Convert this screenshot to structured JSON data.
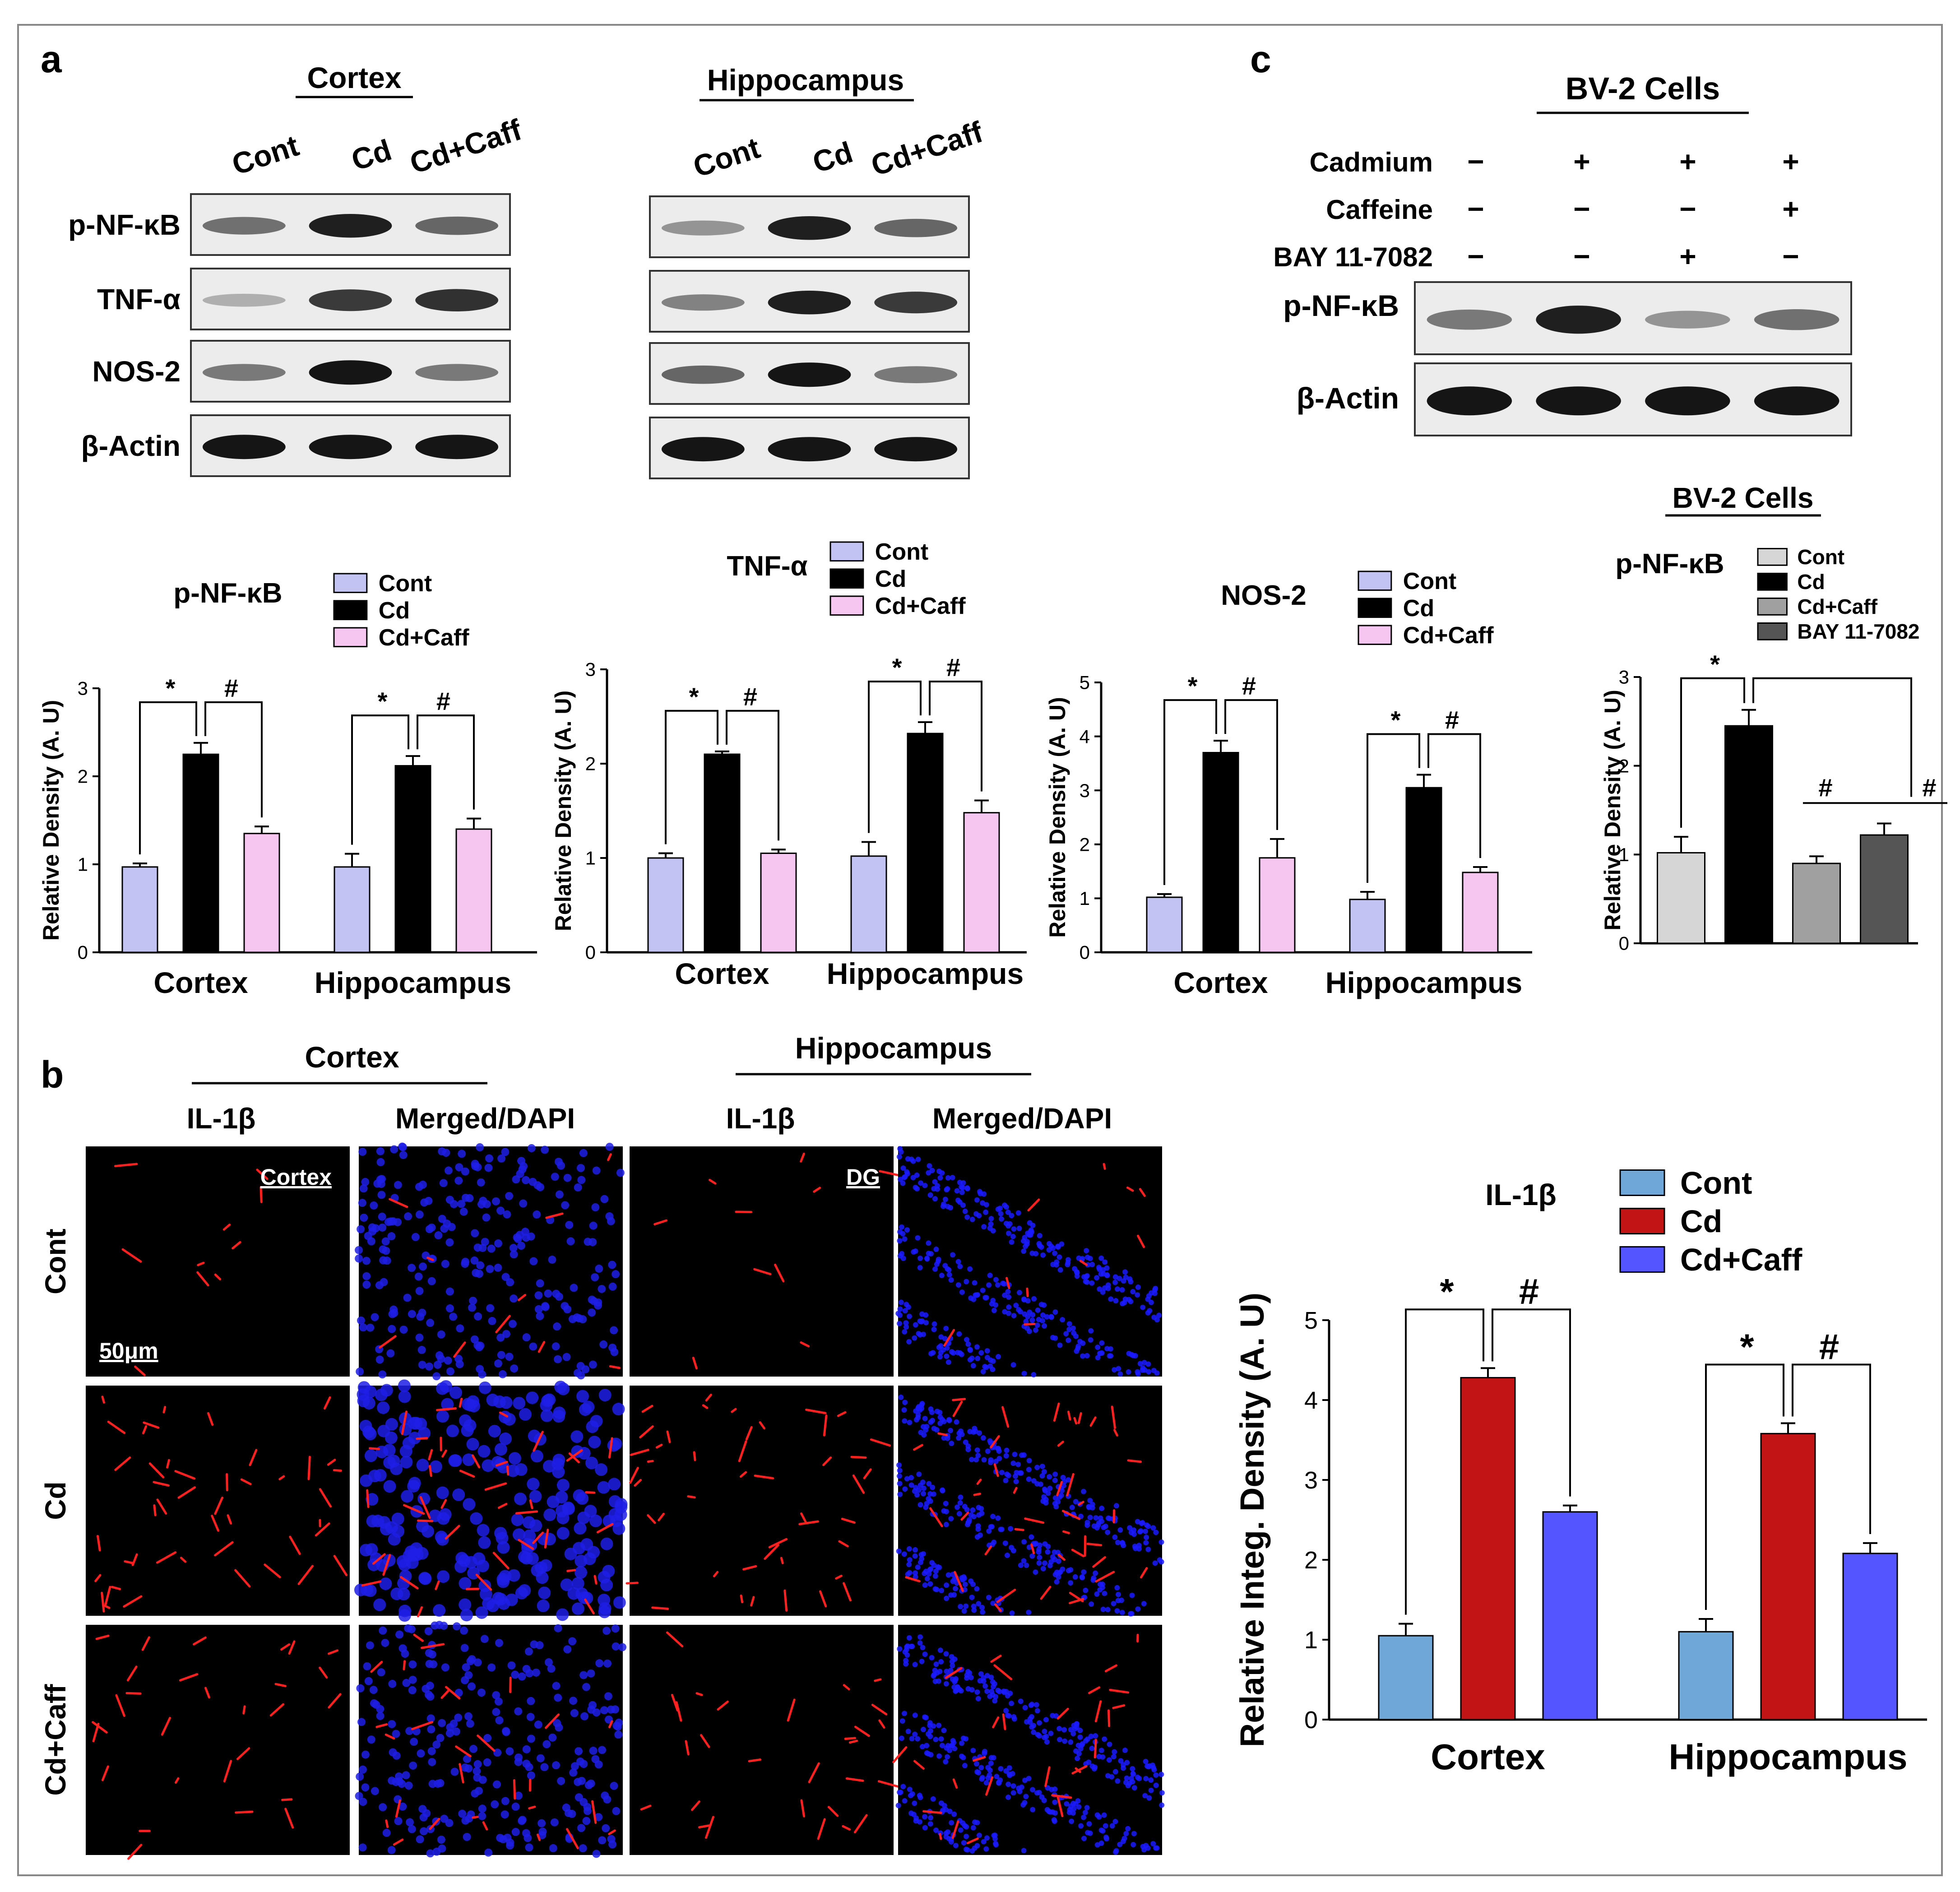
{
  "panels": {
    "a": "a",
    "b": "b",
    "c": "c"
  },
  "blots": {
    "cortex_title": "Cortex",
    "hippo_title": "Hippocampus",
    "lanes": [
      "Cont",
      "Cd",
      "Cd+Caff"
    ],
    "proteins": [
      "p-NF-κB",
      "TNF-α",
      "NOS-2",
      "β-Actin"
    ],
    "cortex_bands": [
      [
        0.5,
        0.95,
        0.55
      ],
      [
        0.15,
        0.8,
        0.85
      ],
      [
        0.45,
        1.0,
        0.45
      ],
      [
        1.0,
        1.0,
        1.0
      ]
    ],
    "hippo_bands": [
      [
        0.3,
        0.95,
        0.55
      ],
      [
        0.4,
        0.95,
        0.8
      ],
      [
        0.55,
        1.0,
        0.45
      ],
      [
        1.0,
        1.0,
        1.0
      ]
    ],
    "bv2_title": "BV-2 Cells",
    "treatments": [
      {
        "name": "Cadmium",
        "signs": [
          "−",
          "+",
          "+",
          "+"
        ]
      },
      {
        "name": "Caffeine",
        "signs": [
          "−",
          "−",
          "−",
          "+"
        ]
      },
      {
        "name": "BAY 11-7082",
        "signs": [
          "−",
          "−",
          "+",
          "−"
        ]
      }
    ],
    "bv2_proteins": [
      "p-NF-κB",
      "β-Actin"
    ],
    "bv2_bands": [
      [
        0.45,
        0.95,
        0.3,
        0.5
      ],
      [
        1.0,
        1.0,
        1.0,
        1.0
      ]
    ]
  },
  "if_panel": {
    "region_cortex": "Cortex",
    "region_hippo": "Hippocampus",
    "col_labels": [
      "IL-1β",
      "Merged/DAPI",
      "IL-1β",
      "Merged/DAPI"
    ],
    "row_labels": [
      "Cont",
      "Cd",
      "Cd+Caff"
    ],
    "overlay_cortex": "Cortex",
    "overlay_dg": "DG",
    "scale_bar": "50μm"
  },
  "chart_data": [
    {
      "type": "bar",
      "title": "p-NF-κB",
      "ylabel": "Relative Density (A. U)",
      "ylim": [
        0,
        3
      ],
      "yticks": [
        "0",
        "1",
        "2",
        "3"
      ],
      "categories": [
        "Cortex",
        "Hippocampus"
      ],
      "series": [
        {
          "name": "Cont",
          "values": [
            0.97,
            0.97
          ],
          "errors": [
            0.04,
            0.15
          ],
          "color": "#c3c3f3"
        },
        {
          "name": "Cd",
          "values": [
            2.25,
            2.12
          ],
          "errors": [
            0.13,
            0.11
          ],
          "color": "#000000"
        },
        {
          "name": "Cd+Caff",
          "values": [
            1.35,
            1.4
          ],
          "errors": [
            0.08,
            0.12
          ],
          "color": "#f6c6f0"
        }
      ],
      "annotations": [
        "*",
        "#",
        "*",
        "#"
      ]
    },
    {
      "type": "bar",
      "title": "TNF-α",
      "ylabel": "Relative Density (A. U)",
      "ylim": [
        0,
        3
      ],
      "yticks": [
        "0",
        "1",
        "2",
        "3"
      ],
      "categories": [
        "Cortex",
        "Hippocampus"
      ],
      "series": [
        {
          "name": "Cont",
          "values": [
            1.0,
            1.02
          ],
          "errors": [
            0.05,
            0.15
          ],
          "color": "#c3c3f3"
        },
        {
          "name": "Cd",
          "values": [
            2.1,
            2.32
          ],
          "errors": [
            0.03,
            0.12
          ],
          "color": "#000000"
        },
        {
          "name": "Cd+Caff",
          "values": [
            1.05,
            1.48
          ],
          "errors": [
            0.04,
            0.13
          ],
          "color": "#f6c6f0"
        }
      ],
      "annotations": [
        "*",
        "#",
        "*",
        "#"
      ]
    },
    {
      "type": "bar",
      "title": "NOS-2",
      "ylabel": "Relative Density (A. U)",
      "ylim": [
        0,
        5
      ],
      "yticks": [
        "0",
        "1",
        "2",
        "3",
        "4",
        "5"
      ],
      "categories": [
        "Cortex",
        "Hippocampus"
      ],
      "series": [
        {
          "name": "Cont",
          "values": [
            1.02,
            0.98
          ],
          "errors": [
            0.06,
            0.14
          ],
          "color": "#c3c3f3"
        },
        {
          "name": "Cd",
          "values": [
            3.7,
            3.05
          ],
          "errors": [
            0.22,
            0.24
          ],
          "color": "#000000"
        },
        {
          "name": "Cd+Caff",
          "values": [
            1.75,
            1.48
          ],
          "errors": [
            0.35,
            0.1
          ],
          "color": "#f6c6f0"
        }
      ],
      "annotations": [
        "*",
        "#",
        "*",
        "#"
      ]
    },
    {
      "type": "bar",
      "title": "p-NF-κB",
      "ylabel": "Relative Density (A. U)",
      "ylim": [
        0,
        3
      ],
      "yticks": [
        "0",
        "1",
        "2",
        "3"
      ],
      "categories": [
        "Cont",
        "Cd",
        "Cd+Caff",
        "BAY 11-7082"
      ],
      "values": [
        1.02,
        2.45,
        0.9,
        1.22
      ],
      "errors": [
        0.18,
        0.18,
        0.08,
        0.13
      ],
      "colors": [
        "#d6d6d6",
        "#000000",
        "#a0a0a0",
        "#555555"
      ],
      "annotations": [
        "*",
        "#",
        "#"
      ]
    },
    {
      "type": "bar",
      "title": "IL-1β",
      "ylabel": "Relative Integ. Density (A. U)",
      "ylim": [
        0,
        5
      ],
      "yticks": [
        "0",
        "1",
        "2",
        "3",
        "4",
        "5"
      ],
      "categories": [
        "Cortex",
        "Hippocampus"
      ],
      "series": [
        {
          "name": "Cont",
          "values": [
            1.05,
            1.1
          ],
          "errors": [
            0.15,
            0.16
          ],
          "color": "#6fa8d8"
        },
        {
          "name": "Cd",
          "values": [
            4.28,
            3.58
          ],
          "errors": [
            0.12,
            0.13
          ],
          "color": "#c21414"
        },
        {
          "name": "Cd+Caff",
          "values": [
            2.6,
            2.08
          ],
          "errors": [
            0.08,
            0.13
          ],
          "color": "#5555ff"
        }
      ],
      "annotations": [
        "*",
        "#",
        "*",
        "#"
      ]
    }
  ],
  "bv2_chart_title": "BV-2 Cells"
}
